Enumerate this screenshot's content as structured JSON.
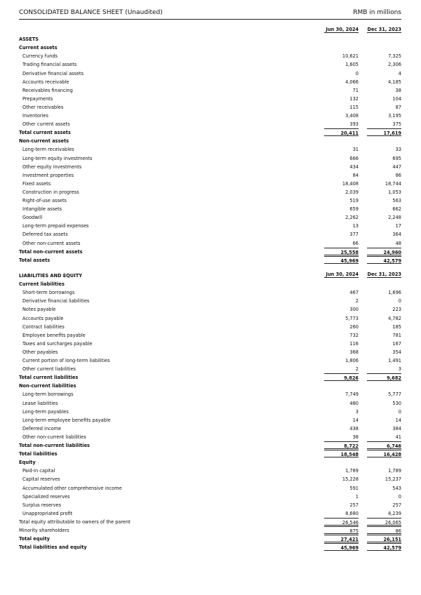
{
  "header": {
    "title": "CONSOLIDATED BALANCE SHEET (Unaudited)",
    "unit": "RMB in millions"
  },
  "columns": [
    "Jun 30, 2024",
    "Dec 31, 2023"
  ],
  "assets": [
    {
      "type": "colhead",
      "label": ""
    },
    {
      "type": "heading",
      "label": "ASSETS"
    },
    {
      "type": "section",
      "label": "Current assets"
    },
    {
      "type": "item",
      "label": "Currency funds",
      "v": [
        "10,621",
        "7,325"
      ]
    },
    {
      "type": "item",
      "label": "Trading financial assets",
      "v": [
        "1,605",
        "2,306"
      ]
    },
    {
      "type": "item",
      "label": "Derivative financial assets",
      "v": [
        "0",
        "4"
      ]
    },
    {
      "type": "item",
      "label": "Accounts receivable",
      "v": [
        "4,066",
        "4,185"
      ]
    },
    {
      "type": "item",
      "label": "Receivables financing",
      "v": [
        "71",
        "38"
      ]
    },
    {
      "type": "item",
      "label": "Prepayments",
      "v": [
        "132",
        "104"
      ]
    },
    {
      "type": "item",
      "label": "Other receivables",
      "v": [
        "115",
        "87"
      ]
    },
    {
      "type": "item",
      "label": "Inventories",
      "v": [
        "3,408",
        "3,195"
      ]
    },
    {
      "type": "item",
      "label": "Other current assets",
      "v": [
        "393",
        "375"
      ]
    },
    {
      "type": "total",
      "label": "Total current assets",
      "v": [
        "20,411",
        "17,619"
      ]
    },
    {
      "type": "section",
      "label": "Non-current assets"
    },
    {
      "type": "item",
      "label": "Long-term receivables",
      "v": [
        "31",
        "33"
      ]
    },
    {
      "type": "item",
      "label": "Long-term equity investments",
      "v": [
        "666",
        "695"
      ]
    },
    {
      "type": "item",
      "label": "Other equity investments",
      "v": [
        "434",
        "447"
      ]
    },
    {
      "type": "item",
      "label": "Investment properties",
      "v": [
        "84",
        "86"
      ]
    },
    {
      "type": "item",
      "label": "Fixed assets",
      "v": [
        "18,408",
        "18,744"
      ]
    },
    {
      "type": "item",
      "label": "Construction in progress",
      "v": [
        "2,039",
        "1,053"
      ]
    },
    {
      "type": "item",
      "label": "Right-of-use assets",
      "v": [
        "519",
        "563"
      ]
    },
    {
      "type": "item",
      "label": "Intangible assets",
      "v": [
        "659",
        "662"
      ]
    },
    {
      "type": "item",
      "label": "Goodwill",
      "v": [
        "2,262",
        "2,248"
      ]
    },
    {
      "type": "item",
      "label": "Long-term prepaid expenses",
      "v": [
        "13",
        "17"
      ]
    },
    {
      "type": "item",
      "label": "Deferred tax assets",
      "v": [
        "377",
        "364"
      ]
    },
    {
      "type": "item",
      "label": "Other non-current assets",
      "v": [
        "66",
        "48"
      ]
    },
    {
      "type": "total",
      "label": "Total non-current assets",
      "v": [
        "25,558",
        "24,960"
      ]
    },
    {
      "type": "total",
      "label": "Total assets",
      "v": [
        "45,969",
        "42,579"
      ]
    }
  ],
  "liabilities": [
    {
      "type": "colhead",
      "label": "LIABILITIES AND EQUITY"
    },
    {
      "type": "section",
      "label": "Current liabilities"
    },
    {
      "type": "item",
      "label": "Short-term borrowings",
      "v": [
        "467",
        "1,696"
      ]
    },
    {
      "type": "item",
      "label": "Derivative financial liabilities",
      "v": [
        "2",
        "0"
      ]
    },
    {
      "type": "item",
      "label": "Notes payable",
      "v": [
        "300",
        "223"
      ]
    },
    {
      "type": "item",
      "label": "Accounts payable",
      "v": [
        "5,773",
        "4,782"
      ]
    },
    {
      "type": "item",
      "label": "Contract liabilities",
      "v": [
        "260",
        "185"
      ]
    },
    {
      "type": "item",
      "label": "Employee benefits payable",
      "v": [
        "732",
        "781"
      ]
    },
    {
      "type": "item",
      "label": "Taxes and surcharges payable",
      "v": [
        "116",
        "167"
      ]
    },
    {
      "type": "item",
      "label": "Other payables",
      "v": [
        "368",
        "354"
      ]
    },
    {
      "type": "item",
      "label": "Current portion of long-term liabilities",
      "v": [
        "1,806",
        "1,491"
      ]
    },
    {
      "type": "item",
      "label": "Other current liabilities",
      "v": [
        "2",
        "3"
      ]
    },
    {
      "type": "total",
      "label": "Total current liabilities",
      "v": [
        "9,826",
        "9,682"
      ]
    },
    {
      "type": "section",
      "label": "Non-current liabilities"
    },
    {
      "type": "item",
      "label": "Long-term borrowings",
      "v": [
        "7,749",
        "5,777"
      ]
    },
    {
      "type": "item",
      "label": "Lease liabilities",
      "v": [
        "480",
        "530"
      ]
    },
    {
      "type": "item",
      "label": "Long-term payables",
      "v": [
        "3",
        "0"
      ]
    },
    {
      "type": "item",
      "label": "Long-term employee benefits payable",
      "v": [
        "14",
        "14"
      ]
    },
    {
      "type": "item",
      "label": "Deferred income",
      "v": [
        "438",
        "384"
      ]
    },
    {
      "type": "item",
      "label": "Other non-current liabilities",
      "v": [
        "38",
        "41"
      ]
    },
    {
      "type": "total",
      "label": "Total non-current liabilities",
      "v": [
        "8,722",
        "6,746"
      ]
    },
    {
      "type": "total",
      "label": "Total liabilities",
      "v": [
        "18,548",
        "16,428"
      ]
    },
    {
      "type": "section",
      "label": "Equity"
    },
    {
      "type": "item",
      "label": "Paid-in capital",
      "v": [
        "1,789",
        "1,789"
      ]
    },
    {
      "type": "item",
      "label": "Capital reserves",
      "v": [
        "15,228",
        "15,237"
      ]
    },
    {
      "type": "item",
      "label": "Accumulated other comprehensive income",
      "v": [
        "591",
        "543"
      ]
    },
    {
      "type": "item",
      "label": "Specialized reserves",
      "v": [
        "1",
        "0"
      ]
    },
    {
      "type": "item",
      "label": "Surplus reserves",
      "v": [
        "257",
        "257"
      ]
    },
    {
      "type": "item",
      "label": "Unappropriated profit",
      "v": [
        "8,680",
        "8,239"
      ]
    },
    {
      "type": "subtotal",
      "label": "Total equity attributable to owners of the parent",
      "v": [
        "26,546",
        "26,065"
      ]
    },
    {
      "type": "subtotal",
      "label": "Minority shareholders",
      "v": [
        "875",
        "86"
      ]
    },
    {
      "type": "total",
      "label": "Total equity",
      "v": [
        "27,421",
        "26,151"
      ]
    },
    {
      "type": "total",
      "label": "Total liabilities and equity",
      "v": [
        "45,969",
        "42,579"
      ]
    }
  ]
}
